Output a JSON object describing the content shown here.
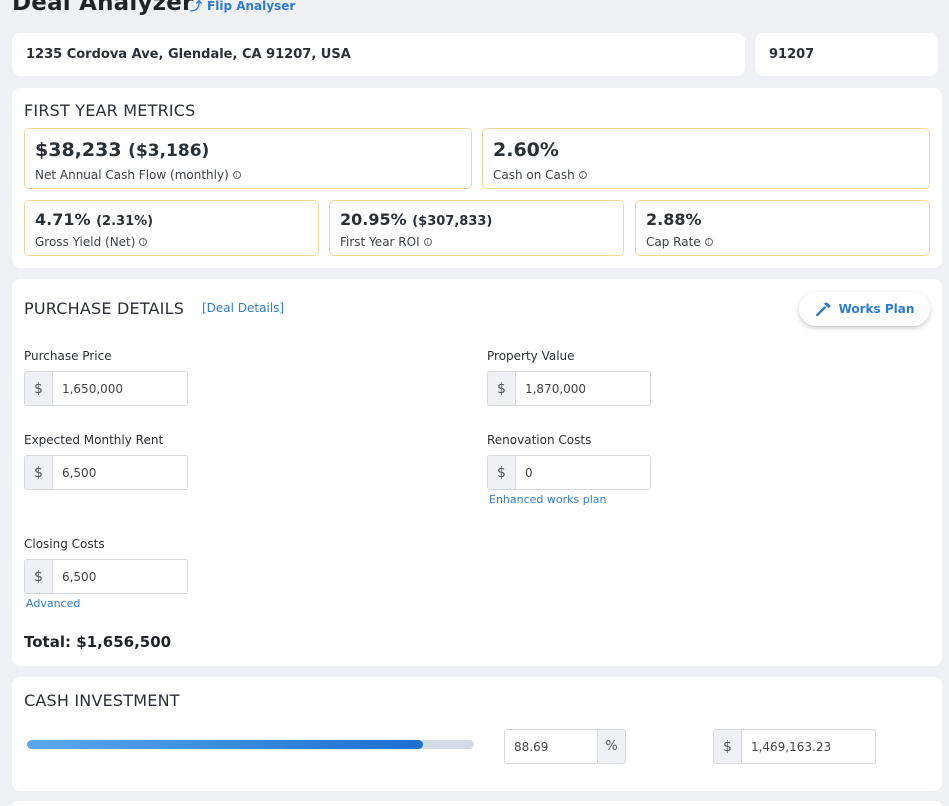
{
  "header": {
    "title": "Deal Analyzer",
    "flip_link": "Flip Analyser",
    "flip_icon": "return-arrow-icon"
  },
  "address": {
    "full": "1235 Cordova Ave, Glendale, CA 91207, USA",
    "zip": "91207"
  },
  "first_year": {
    "title": "FIRST YEAR METRICS",
    "cash_flow": {
      "value": "$38,233",
      "sub": "($3,186)",
      "label": "Net Annual Cash Flow (monthly)"
    },
    "cash_on_cash": {
      "value": "2.60%",
      "label": "Cash on Cash"
    },
    "gross_yield": {
      "value": "4.71%",
      "sub": "(2.31%)",
      "label": "Gross Yield (Net)"
    },
    "roi": {
      "value": "20.95%",
      "sub": "($307,833)",
      "label": "First Year ROI"
    },
    "cap_rate": {
      "value": "2.88%",
      "label": "Cap Rate"
    }
  },
  "purchase": {
    "title": "PURCHASE DETAILS",
    "deal_details_link": "[Deal Details]",
    "works_plan_button": "Works Plan",
    "works_plan_icon": "hammer-icon",
    "currency_symbol": "$",
    "purchase_price": {
      "label": "Purchase Price",
      "value": "1,650,000"
    },
    "property_value": {
      "label": "Property Value",
      "value": "1,870,000"
    },
    "monthly_rent": {
      "label": "Expected Monthly Rent",
      "value": "6,500"
    },
    "renovation": {
      "label": "Renovation Costs",
      "value": "0",
      "link": "Enhanced works plan"
    },
    "closing": {
      "label": "Closing Costs",
      "value": "6,500",
      "link": "Advanced"
    },
    "total": "Total: $1,656,500"
  },
  "cash_investment": {
    "title": "CASH INVESTMENT",
    "percent_value": "88.69",
    "percent_symbol": "%",
    "currency_symbol": "$",
    "amount_value": "1,469,163.23",
    "progress_fraction": 0.8869
  },
  "colors": {
    "accent": "#2f7bd0",
    "metric_border": "#f5d596",
    "background": "#eef0f3"
  }
}
